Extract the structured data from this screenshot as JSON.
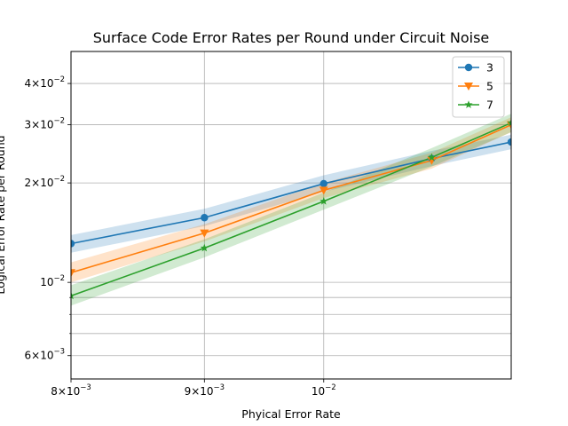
{
  "chart_data": {
    "type": "line",
    "title": "Surface Code Error Rates per Round under Circuit Noise",
    "xlabel": "Phyical Error Rate",
    "ylabel": "Logical Error Rate per Round",
    "xscale": "log",
    "yscale": "log",
    "xlim": [
      0.008,
      0.0118
    ],
    "ylim": [
      0.0051,
      0.05
    ],
    "grid": true,
    "legend_position": "top-right",
    "x_ticks": [
      {
        "value": 0.008,
        "mantissa": "8",
        "exponent": "−3"
      },
      {
        "value": 0.009,
        "mantissa": "9",
        "exponent": "−3"
      },
      {
        "value": 0.01,
        "mantissa": "",
        "exponent": "−2"
      }
    ],
    "y_ticks": [
      {
        "value": 0.006,
        "mantissa": "6",
        "exponent": "−3"
      },
      {
        "value": 0.01,
        "mantissa": "",
        "exponent": "−2"
      },
      {
        "value": 0.02,
        "mantissa": "2",
        "exponent": "−2"
      },
      {
        "value": 0.03,
        "mantissa": "3",
        "exponent": "−2"
      },
      {
        "value": 0.04,
        "mantissa": "4",
        "exponent": "−2"
      }
    ],
    "y_minor_ticks": [
      0.007,
      0.008,
      0.009
    ],
    "x": [
      0.008,
      0.009,
      0.01,
      0.011,
      0.0118
    ],
    "series": [
      {
        "name": "3",
        "color": "#1f77b4",
        "marker": "circle",
        "values": [
          0.0131,
          0.0157,
          0.0199,
          0.0237,
          0.0266
        ],
        "lower": [
          0.0123,
          0.0148,
          0.0188,
          0.0225,
          0.0253
        ],
        "upper": [
          0.0139,
          0.0167,
          0.0211,
          0.025,
          0.028
        ]
      },
      {
        "name": "5",
        "color": "#ff7f0e",
        "marker": "triangle-down",
        "values": [
          0.0107,
          0.0141,
          0.019,
          0.0234,
          0.03
        ],
        "lower": [
          0.01,
          0.0133,
          0.018,
          0.0221,
          0.0285
        ],
        "upper": [
          0.0115,
          0.015,
          0.02,
          0.0247,
          0.0316
        ]
      },
      {
        "name": "7",
        "color": "#2ca02c",
        "marker": "star",
        "values": [
          0.0091,
          0.0127,
          0.0176,
          0.0239,
          0.0304
        ],
        "lower": [
          0.0085,
          0.0119,
          0.0166,
          0.0224,
          0.0285
        ],
        "upper": [
          0.0098,
          0.0135,
          0.0187,
          0.0255,
          0.0324
        ]
      }
    ]
  }
}
